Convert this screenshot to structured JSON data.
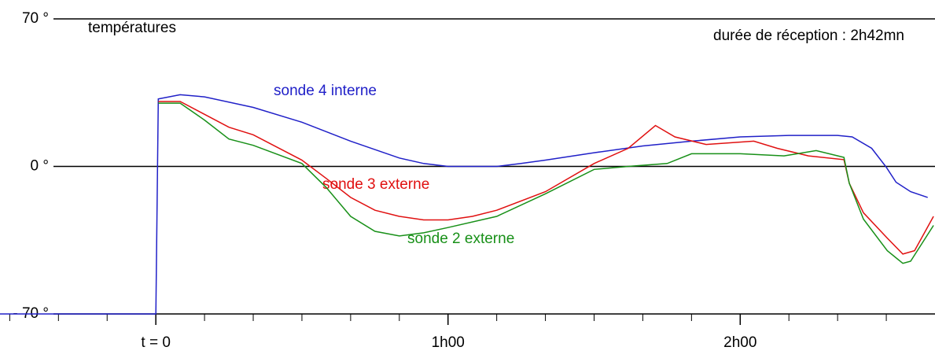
{
  "chart_data": {
    "type": "line",
    "title": "températures",
    "subtitle": "durée de réception : 2h42mn",
    "xlim": [
      -32,
      160
    ],
    "ylim": [
      -70,
      70
    ],
    "xticks": [
      {
        "value": 0,
        "label": "t = 0"
      },
      {
        "value": 60,
        "label": "1h00"
      },
      {
        "value": 120,
        "label": "2h00"
      }
    ],
    "xticks_minor": [
      -30,
      -20,
      -10,
      10,
      20,
      30,
      40,
      50,
      70,
      80,
      90,
      100,
      110,
      130,
      140,
      150
    ],
    "yticks": [
      {
        "value": -70,
        "label": "- 70 °"
      },
      {
        "value": 0,
        "label": "0 °"
      },
      {
        "value": 70,
        "label": "70 °"
      }
    ],
    "series": [
      {
        "name": "sonde 4 interne",
        "color": "#2020c8",
        "x": [
          -32,
          0,
          0.5,
          5,
          10,
          20,
          30,
          40,
          50,
          55,
          60,
          70,
          75,
          80,
          90,
          100,
          110,
          120,
          130,
          140,
          143,
          147,
          150,
          152,
          155,
          158.5
        ],
        "values": [
          -70,
          -70,
          32,
          34,
          33,
          28,
          21,
          12,
          4,
          1.4,
          0,
          0,
          1.4,
          3,
          6.5,
          9.7,
          12,
          14,
          14.7,
          14.7,
          14,
          8.6,
          -0.4,
          -7.5,
          -12,
          -14.7
        ]
      },
      {
        "name": "sonde 3 externe",
        "color": "#e01010",
        "x": [
          0.5,
          5,
          10,
          15,
          20,
          25,
          30,
          35,
          40,
          45,
          50,
          55,
          60,
          65,
          70,
          80,
          90,
          97,
          102.6,
          106.6,
          113,
          122.8,
          127.6,
          134,
          141.3,
          142.4,
          145.3,
          150.2,
          153.4,
          155.8,
          159.7
        ],
        "values": [
          30.8,
          30.8,
          24.7,
          18.6,
          15,
          9,
          3,
          -5.7,
          -14.7,
          -20.8,
          -23.7,
          -25.4,
          -25.4,
          -23.7,
          -20.8,
          -12,
          1.4,
          8.6,
          19.4,
          14,
          10.4,
          12,
          8.6,
          5,
          3.2,
          -8,
          -22,
          -34,
          -41.6,
          -40,
          -23.7
        ]
      },
      {
        "name": "sonde 2 externe",
        "color": "#189018",
        "x": [
          0.5,
          5,
          10,
          15,
          20,
          30,
          35,
          40,
          45,
          50,
          55,
          60,
          70,
          80,
          90,
          97,
          105,
          110,
          120,
          129,
          135.6,
          141.3,
          142.4,
          145.3,
          150.2,
          153.4,
          155,
          159.7
        ],
        "values": [
          30,
          30,
          22,
          13,
          10,
          1.4,
          -10,
          -23.7,
          -30.8,
          -33,
          -31.5,
          -29,
          -23.7,
          -13,
          -1.4,
          0,
          1.4,
          6,
          6,
          5,
          7.5,
          4.3,
          -8,
          -25,
          -40,
          -46,
          -45,
          -28
        ]
      }
    ]
  }
}
